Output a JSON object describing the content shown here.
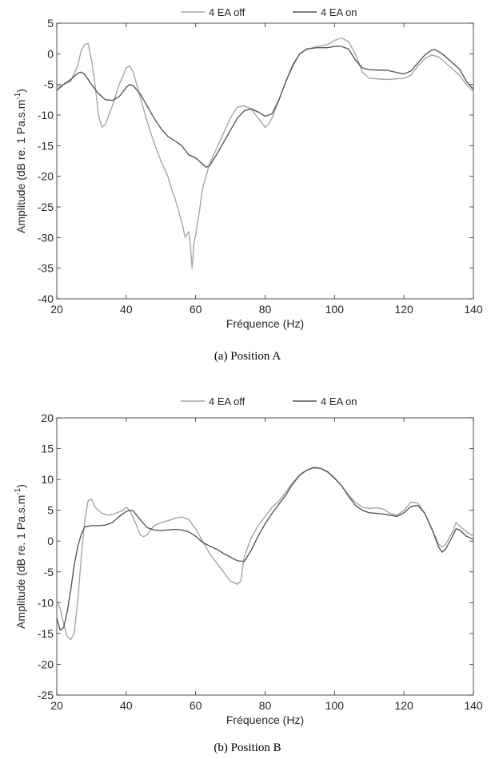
{
  "chart_data": [
    {
      "type": "line",
      "caption": "(a) Position A",
      "xlabel": "Fréquence (Hz)",
      "ylabel": "Amplitude (dB re. 1 Pa.s.m",
      "ylabel_sup": "-1",
      "ylabel_close": ")",
      "xlim": [
        20,
        140
      ],
      "ylim": [
        -40,
        5
      ],
      "xticks": [
        20,
        40,
        60,
        80,
        100,
        120,
        140
      ],
      "yticks": [
        -40,
        -35,
        -30,
        -25,
        -20,
        -15,
        -10,
        -5,
        0,
        5
      ],
      "legend_position": "top-center",
      "grid": false,
      "series": [
        {
          "name": "4 EA off",
          "color": "#a6a6a6",
          "points": [
            [
              20,
              -5.5
            ],
            [
              22,
              -5.0
            ],
            [
              24,
              -4.5
            ],
            [
              26,
              -2.0
            ],
            [
              27,
              0.5
            ],
            [
              28,
              1.5
            ],
            [
              29,
              1.7
            ],
            [
              30,
              -1.0
            ],
            [
              31,
              -5.0
            ],
            [
              32,
              -10.0
            ],
            [
              33,
              -12.0
            ],
            [
              34,
              -11.5
            ],
            [
              36,
              -8.5
            ],
            [
              38,
              -5.0
            ],
            [
              40,
              -2.3
            ],
            [
              41,
              -2.0
            ],
            [
              42,
              -3.0
            ],
            [
              44,
              -7.0
            ],
            [
              46,
              -11.0
            ],
            [
              48,
              -14.5
            ],
            [
              50,
              -17.5
            ],
            [
              52,
              -20.0
            ],
            [
              53,
              -22.0
            ],
            [
              54,
              -23.5
            ],
            [
              55,
              -25.5
            ],
            [
              56,
              -27.5
            ],
            [
              57,
              -30.0
            ],
            [
              58,
              -29.0
            ],
            [
              58.5,
              -31.5
            ],
            [
              59,
              -35.0
            ],
            [
              59.5,
              -31.0
            ],
            [
              60,
              -29.5
            ],
            [
              61,
              -26.0
            ],
            [
              62,
              -22.0
            ],
            [
              64,
              -18.0
            ],
            [
              66,
              -15.5
            ],
            [
              68,
              -13.0
            ],
            [
              70,
              -10.5
            ],
            [
              72,
              -8.7
            ],
            [
              74,
              -8.5
            ],
            [
              76,
              -9.0
            ],
            [
              78,
              -10.5
            ],
            [
              80,
              -12.0
            ],
            [
              81,
              -11.5
            ],
            [
              82,
              -10.5
            ],
            [
              84,
              -7.5
            ],
            [
              86,
              -4.5
            ],
            [
              88,
              -2.0
            ],
            [
              90,
              0.0
            ],
            [
              92,
              0.7
            ],
            [
              95,
              1.2
            ],
            [
              98,
              1.5
            ],
            [
              100,
              2.2
            ],
            [
              102,
              2.6
            ],
            [
              104,
              2.0
            ],
            [
              106,
              0.0
            ],
            [
              108,
              -3.0
            ],
            [
              110,
              -4.0
            ],
            [
              115,
              -4.2
            ],
            [
              120,
              -4.0
            ],
            [
              122,
              -3.5
            ],
            [
              124,
              -2.0
            ],
            [
              126,
              -0.8
            ],
            [
              128,
              -0.2
            ],
            [
              130,
              -0.5
            ],
            [
              132,
              -1.5
            ],
            [
              134,
              -2.5
            ],
            [
              136,
              -3.5
            ],
            [
              138,
              -5.0
            ],
            [
              140,
              -6.2
            ]
          ]
        },
        {
          "name": "4 EA on",
          "color": "#595959",
          "points": [
            [
              20,
              -6.0
            ],
            [
              22,
              -5.0
            ],
            [
              24,
              -4.2
            ],
            [
              26,
              -3.2
            ],
            [
              27,
              -3.0
            ],
            [
              28,
              -3.3
            ],
            [
              30,
              -5.0
            ],
            [
              32,
              -6.5
            ],
            [
              34,
              -7.5
            ],
            [
              36,
              -7.6
            ],
            [
              38,
              -7.0
            ],
            [
              40,
              -5.5
            ],
            [
              41,
              -5.0
            ],
            [
              42,
              -5.2
            ],
            [
              44,
              -6.5
            ],
            [
              46,
              -8.5
            ],
            [
              48,
              -10.5
            ],
            [
              50,
              -12.2
            ],
            [
              52,
              -13.5
            ],
            [
              54,
              -14.2
            ],
            [
              56,
              -15.0
            ],
            [
              58,
              -16.5
            ],
            [
              60,
              -17.0
            ],
            [
              62,
              -18.0
            ],
            [
              63,
              -18.5
            ],
            [
              64,
              -18.3
            ],
            [
              66,
              -16.5
            ],
            [
              68,
              -14.5
            ],
            [
              70,
              -12.5
            ],
            [
              72,
              -10.5
            ],
            [
              74,
              -9.3
            ],
            [
              76,
              -9.0
            ],
            [
              78,
              -9.5
            ],
            [
              80,
              -10.2
            ],
            [
              82,
              -9.8
            ],
            [
              84,
              -7.5
            ],
            [
              86,
              -4.5
            ],
            [
              88,
              -1.8
            ],
            [
              90,
              0.0
            ],
            [
              92,
              0.8
            ],
            [
              95,
              1.0
            ],
            [
              98,
              1.0
            ],
            [
              100,
              1.2
            ],
            [
              102,
              1.2
            ],
            [
              104,
              0.8
            ],
            [
              106,
              -1.0
            ],
            [
              108,
              -2.3
            ],
            [
              110,
              -2.6
            ],
            [
              115,
              -2.7
            ],
            [
              120,
              -3.3
            ],
            [
              122,
              -2.8
            ],
            [
              124,
              -1.5
            ],
            [
              126,
              -0.2
            ],
            [
              128,
              0.6
            ],
            [
              129,
              0.7
            ],
            [
              131,
              0.0
            ],
            [
              134,
              -1.5
            ],
            [
              136,
              -2.5
            ],
            [
              138,
              -4.5
            ],
            [
              140,
              -5.8
            ]
          ]
        }
      ]
    },
    {
      "type": "line",
      "caption": "(b) Position B",
      "xlabel": "Fréquence (Hz)",
      "ylabel": "Amplitude (dB re. 1 Pa.s.m",
      "ylabel_sup": "-1",
      "ylabel_close": ")",
      "xlim": [
        20,
        140
      ],
      "ylim": [
        -25,
        20
      ],
      "xticks": [
        20,
        40,
        60,
        80,
        100,
        120,
        140
      ],
      "yticks": [
        -25,
        -20,
        -15,
        -10,
        -5,
        0,
        5,
        10,
        15,
        20
      ],
      "legend_position": "top-center",
      "grid": false,
      "series": [
        {
          "name": "4 EA off",
          "color": "#a6a6a6",
          "points": [
            [
              20,
              -9.5
            ],
            [
              21,
              -11.0
            ],
            [
              22,
              -13.5
            ],
            [
              23,
              -15.5
            ],
            [
              24,
              -16.0
            ],
            [
              25,
              -15.0
            ],
            [
              26,
              -10.0
            ],
            [
              27,
              -3.0
            ],
            [
              28,
              3.0
            ],
            [
              29,
              6.5
            ],
            [
              30,
              6.8
            ],
            [
              31,
              5.5
            ],
            [
              33,
              4.5
            ],
            [
              35,
              4.2
            ],
            [
              37,
              4.5
            ],
            [
              39,
              5.0
            ],
            [
              40,
              5.5
            ],
            [
              41,
              5.0
            ],
            [
              43,
              2.5
            ],
            [
              44,
              1.0
            ],
            [
              45,
              0.7
            ],
            [
              46,
              1.0
            ],
            [
              48,
              2.5
            ],
            [
              50,
              3.0
            ],
            [
              52,
              3.3
            ],
            [
              54,
              3.7
            ],
            [
              56,
              3.9
            ],
            [
              58,
              3.5
            ],
            [
              60,
              2.0
            ],
            [
              62,
              0.0
            ],
            [
              64,
              -2.0
            ],
            [
              66,
              -3.5
            ],
            [
              68,
              -5.0
            ],
            [
              70,
              -6.5
            ],
            [
              72,
              -7.0
            ],
            [
              73,
              -6.5
            ],
            [
              74,
              -2.5
            ],
            [
              76,
              0.5
            ],
            [
              78,
              2.5
            ],
            [
              80,
              4.0
            ],
            [
              82,
              5.5
            ],
            [
              84,
              6.5
            ],
            [
              86,
              8.0
            ],
            [
              88,
              9.5
            ],
            [
              90,
              10.8
            ],
            [
              92,
              11.5
            ],
            [
              94,
              12.0
            ],
            [
              96,
              11.8
            ],
            [
              98,
              11.3
            ],
            [
              100,
              10.3
            ],
            [
              102,
              9.0
            ],
            [
              104,
              7.5
            ],
            [
              106,
              6.3
            ],
            [
              108,
              5.5
            ],
            [
              110,
              5.3
            ],
            [
              112,
              5.4
            ],
            [
              114,
              5.2
            ],
            [
              116,
              4.5
            ],
            [
              118,
              4.2
            ],
            [
              120,
              5.0
            ],
            [
              122,
              6.3
            ],
            [
              124,
              6.2
            ],
            [
              126,
              4.5
            ],
            [
              128,
              2.0
            ],
            [
              130,
              -0.5
            ],
            [
              131,
              -1.0
            ],
            [
              132,
              -0.5
            ],
            [
              134,
              1.5
            ],
            [
              135,
              3.0
            ],
            [
              136,
              2.5
            ],
            [
              138,
              1.5
            ],
            [
              140,
              0.8
            ]
          ]
        },
        {
          "name": "4 EA on",
          "color": "#595959",
          "points": [
            [
              20,
              -12.5
            ],
            [
              21,
              -14.5
            ],
            [
              22,
              -14.0
            ],
            [
              23,
              -11.5
            ],
            [
              24,
              -8.0
            ],
            [
              25,
              -4.0
            ],
            [
              26,
              -1.0
            ],
            [
              27,
              1.0
            ],
            [
              28,
              2.3
            ],
            [
              30,
              2.5
            ],
            [
              32,
              2.5
            ],
            [
              34,
              2.6
            ],
            [
              36,
              3.0
            ],
            [
              38,
              4.0
            ],
            [
              40,
              4.8
            ],
            [
              41,
              5.0
            ],
            [
              42,
              4.9
            ],
            [
              44,
              3.5
            ],
            [
              46,
              2.2
            ],
            [
              48,
              1.8
            ],
            [
              50,
              1.7
            ],
            [
              52,
              1.8
            ],
            [
              54,
              1.9
            ],
            [
              56,
              1.8
            ],
            [
              58,
              1.5
            ],
            [
              60,
              0.8
            ],
            [
              62,
              -0.2
            ],
            [
              64,
              -0.8
            ],
            [
              66,
              -1.3
            ],
            [
              68,
              -2.0
            ],
            [
              70,
              -2.6
            ],
            [
              72,
              -3.2
            ],
            [
              74,
              -3.3
            ],
            [
              76,
              -1.5
            ],
            [
              78,
              0.8
            ],
            [
              80,
              2.8
            ],
            [
              82,
              4.5
            ],
            [
              84,
              6.0
            ],
            [
              86,
              7.5
            ],
            [
              88,
              9.3
            ],
            [
              90,
              10.7
            ],
            [
              92,
              11.5
            ],
            [
              94,
              11.9
            ],
            [
              96,
              11.8
            ],
            [
              98,
              11.2
            ],
            [
              100,
              10.2
            ],
            [
              102,
              9.0
            ],
            [
              104,
              7.3
            ],
            [
              106,
              5.8
            ],
            [
              108,
              5.0
            ],
            [
              110,
              4.6
            ],
            [
              112,
              4.5
            ],
            [
              114,
              4.4
            ],
            [
              116,
              4.2
            ],
            [
              118,
              4.0
            ],
            [
              120,
              4.6
            ],
            [
              122,
              5.6
            ],
            [
              124,
              5.8
            ],
            [
              126,
              4.5
            ],
            [
              128,
              2.0
            ],
            [
              130,
              -1.0
            ],
            [
              131,
              -1.8
            ],
            [
              132,
              -1.3
            ],
            [
              134,
              0.8
            ],
            [
              135,
              2.0
            ],
            [
              136,
              1.8
            ],
            [
              138,
              0.8
            ],
            [
              140,
              0.3
            ]
          ]
        }
      ]
    }
  ]
}
